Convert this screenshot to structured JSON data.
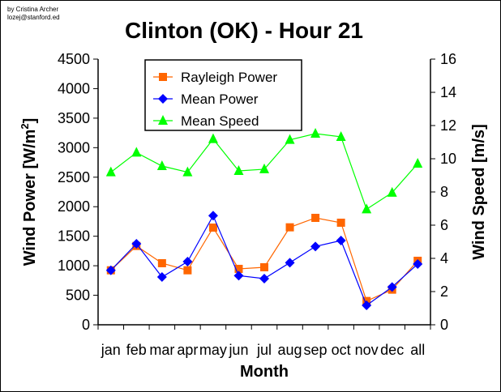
{
  "credit": {
    "line1": "by Cristina Archer",
    "line2": "lozej@stanford.ed"
  },
  "chart_data": {
    "type": "line",
    "title": "Clinton (OK) - Hour 21",
    "xlabel": "Month",
    "ylabel": "Wind Power [W/m",
    "ylabel_sup": "2",
    "ylabel_end": "]",
    "y2label": "Wind Speed [m/s]",
    "categories": [
      "jan",
      "feb",
      "mar",
      "apr",
      "may",
      "jun",
      "jul",
      "aug",
      "sep",
      "oct",
      "nov",
      "dec",
      "all"
    ],
    "ylim": [
      0,
      4500
    ],
    "yticks": [
      0,
      500,
      1000,
      1500,
      2000,
      2500,
      3000,
      3500,
      4000,
      4500
    ],
    "y2lim": [
      0,
      16
    ],
    "y2ticks": [
      0,
      2,
      4,
      6,
      8,
      10,
      12,
      14,
      16
    ],
    "legend_position": "top-left",
    "series": [
      {
        "name": "Rayleigh Power",
        "axis": "left",
        "color": "#ff6600",
        "marker": "square",
        "values": [
          923,
          1335,
          1043,
          923,
          1646,
          947,
          974,
          1651,
          1811,
          1729,
          403,
          595,
          1084
        ]
      },
      {
        "name": "Mean Power",
        "axis": "left",
        "color": "#0000ff",
        "marker": "diamond",
        "values": [
          923,
          1372,
          809,
          1070,
          1848,
          832,
          782,
          1052,
          1326,
          1427,
          329,
          640,
          1029
        ]
      },
      {
        "name": "Mean Speed",
        "axis": "right",
        "color": "#00ff00",
        "marker": "triangle",
        "values": [
          9.19,
          10.37,
          9.56,
          9.19,
          11.19,
          9.27,
          9.37,
          11.14,
          11.51,
          11.32,
          6.96,
          7.96,
          9.71
        ]
      }
    ]
  }
}
